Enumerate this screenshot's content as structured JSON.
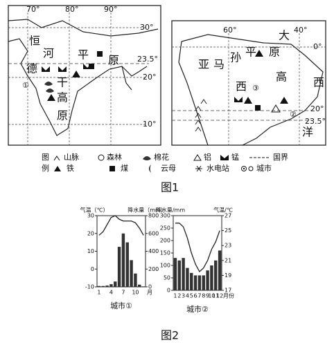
{
  "figure1": {
    "caption": "图1",
    "map_india": {
      "lon_labels": [
        "70°",
        "80°",
        "90°"
      ],
      "lat_labels": [
        "30°",
        "23.5°",
        "20°",
        "10°"
      ],
      "labels": [
        "恒",
        "河",
        "平",
        "原",
        "德",
        "干",
        "高",
        "原"
      ],
      "city": "①"
    },
    "map_brazil": {
      "lon_labels": [
        "60°",
        "40°"
      ],
      "lat_labels": [
        "0°",
        "20°",
        "23.5°"
      ],
      "labels": [
        "大",
        "亚",
        "马",
        "孙",
        "平",
        "原",
        "高",
        "西",
        "西",
        "洋"
      ],
      "cities": [
        "③",
        "②"
      ]
    },
    "legend": {
      "title": [
        "图",
        "例"
      ],
      "items": [
        "山脉",
        "森林",
        "棉花",
        "铝",
        "锰",
        "国界",
        "铁",
        "煤",
        "云母",
        "水电站",
        "城市"
      ]
    }
  },
  "figure2": {
    "caption": "图2",
    "charts": [
      {
        "type": "climate",
        "title": "城市①",
        "y_label": "气温（℃）",
        "y2_label": "降水量（mm）",
        "x_label": "月",
        "categories": [
          1,
          null,
          null,
          4,
          null,
          null,
          7,
          null,
          null,
          10,
          null,
          null
        ],
        "ylim": [
          -10,
          30
        ],
        "yticks": [
          -10,
          0,
          10,
          20,
          30
        ],
        "y2lim": [
          0,
          800
        ],
        "y2ticks": [
          0,
          200,
          400,
          600,
          800
        ],
        "temperature": {
          "axis": "y",
          "color": "#222",
          "values": [
            19,
            21,
            25,
            29,
            30,
            28,
            27,
            27,
            27,
            26,
            23,
            19
          ]
        },
        "precipitation": {
          "axis": "y2",
          "color": "#333",
          "values": [
            10,
            10,
            15,
            30,
            60,
            450,
            600,
            500,
            300,
            150,
            25,
            5
          ]
        }
      },
      {
        "type": "climate",
        "title": "城市②",
        "y_label": "降水量/mm",
        "y2_label": "气温/℃",
        "x_label": "月份",
        "categories": [
          1,
          2,
          3,
          4,
          5,
          6,
          7,
          8,
          9,
          10,
          11,
          12
        ],
        "ylim": [
          0,
          300
        ],
        "yticks": [
          0,
          50,
          100,
          150,
          200,
          250,
          300
        ],
        "y2lim": [
          17,
          27
        ],
        "y2ticks": [
          17,
          19,
          21,
          23,
          25,
          27
        ],
        "temperature": {
          "axis": "y2",
          "color": "#222",
          "values": [
            26,
            26,
            25.5,
            24,
            22,
            20.5,
            19.5,
            20,
            21,
            22.5,
            23.5,
            25
          ]
        },
        "precipitation": {
          "axis": "y",
          "color": "#333",
          "values": [
            130,
            120,
            130,
            90,
            70,
            60,
            60,
            60,
            80,
            100,
            120,
            160
          ]
        }
      }
    ]
  }
}
